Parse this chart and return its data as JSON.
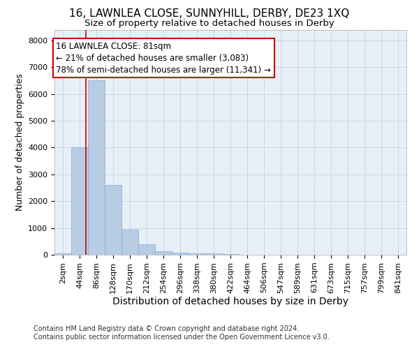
{
  "title": "16, LAWNLEA CLOSE, SUNNYHILL, DERBY, DE23 1XQ",
  "subtitle": "Size of property relative to detached houses in Derby",
  "xlabel": "Distribution of detached houses by size in Derby",
  "ylabel": "Number of detached properties",
  "footer_line1": "Contains HM Land Registry data © Crown copyright and database right 2024.",
  "footer_line2": "Contains public sector information licensed under the Open Government Licence v3.0.",
  "bin_labels": [
    "2sqm",
    "44sqm",
    "86sqm",
    "128sqm",
    "170sqm",
    "212sqm",
    "254sqm",
    "296sqm",
    "338sqm",
    "380sqm",
    "422sqm",
    "464sqm",
    "506sqm",
    "547sqm",
    "589sqm",
    "631sqm",
    "673sqm",
    "715sqm",
    "757sqm",
    "799sqm",
    "841sqm"
  ],
  "bar_heights": [
    50,
    4000,
    6500,
    2600,
    950,
    380,
    130,
    80,
    50,
    60,
    20,
    0,
    0,
    0,
    0,
    0,
    0,
    0,
    0,
    0,
    0
  ],
  "bar_color": "#b8cce4",
  "bar_edge_color": "#7bafd4",
  "grid_color": "#c8d8e8",
  "background_color": "#e8eff7",
  "marker_label": "16 LAWNLEA CLOSE: 81sqm",
  "annotation_line1": "← 21% of detached houses are smaller (3,083)",
  "annotation_line2": "78% of semi-detached houses are larger (11,341) →",
  "annotation_box_color": "#ffffff",
  "annotation_box_edge": "#cc0000",
  "marker_line_color": "#cc0000",
  "ylim": [
    0,
    8400
  ],
  "yticks": [
    0,
    1000,
    2000,
    3000,
    4000,
    5000,
    6000,
    7000,
    8000
  ],
  "title_fontsize": 11,
  "subtitle_fontsize": 9.5,
  "xlabel_fontsize": 10,
  "ylabel_fontsize": 9,
  "tick_fontsize": 8,
  "annotation_fontsize": 8.5,
  "footer_fontsize": 7
}
